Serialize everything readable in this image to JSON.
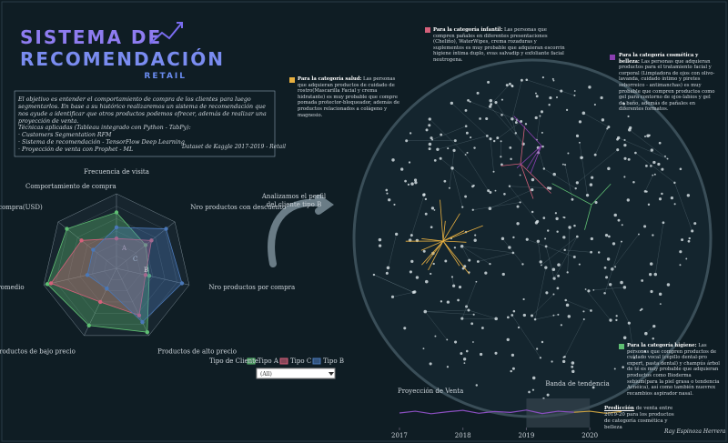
{
  "header": {
    "title_line1": "SISTEMA DE",
    "title_line2": "RECOMENDACIÓN",
    "subtitle": "RETAIL"
  },
  "intro": {
    "paragraph": "El objetivo es entender el comportamiento de compra de los clientes para luego segmentarlos. En base a su histórico realizaremos un sistema de recomendación que nos ayude a identificar que otros productos podemos ofrecer, además de realizar una proyección de venta.",
    "techniques_title": "Técnicas aplicadas (Tableau integrado con Python - TabPy):",
    "techniques": [
      "· Customers Segmentation RFM",
      "· Sistema de recomendación - TensorFlow Deep Learning",
      "· Proyección de venta con Prophet - ML"
    ],
    "source": "Dataset de Kaggle 2017-2019 - Retail"
  },
  "chart_data": [
    {
      "type": "radar",
      "title": "Comportamiento de compra",
      "categories": [
        "Frecuencia de visita",
        "Nro productos con descuento",
        "Nro productos por compra",
        "Productos de alto precio",
        "Productos de bajo precio",
        "Productos de precio promedio",
        "Total de compra(USD)"
      ],
      "rlim": [
        0,
        1
      ],
      "legend_title": "Tipo de Cliente",
      "series": [
        {
          "name": "Tipo A",
          "point_label": "A",
          "color": "#5fbf73",
          "values": [
            0.75,
            0.5,
            0.45,
            0.95,
            0.85,
            0.95,
            0.85
          ]
        },
        {
          "name": "Tipo C",
          "point_label": "C",
          "color": "#d4607a",
          "values": [
            0.4,
            0.6,
            0.4,
            0.7,
            0.5,
            0.9,
            0.6
          ]
        },
        {
          "name": "Tipo B",
          "point_label": "B",
          "color": "#4a78b8",
          "values": [
            0.55,
            0.85,
            0.9,
            0.8,
            0.3,
            0.4,
            0.4
          ]
        }
      ]
    },
    {
      "type": "line",
      "title": "Proyección de Venta",
      "band_label": "Banda de tendencia",
      "xlim": [
        2016.9,
        2020.6
      ],
      "ylim": [
        0,
        200
      ],
      "xticks": [
        2017,
        2018,
        2019,
        2020
      ],
      "x": [
        2017,
        2017.25,
        2017.5,
        2017.75,
        2018,
        2018.25,
        2018.5,
        2018.75,
        2019,
        2019.25,
        2019.5,
        2019.75,
        2020,
        2020.25,
        2020.5
      ],
      "series": [
        {
          "color": "#8a4fc0",
          "values": [
            100,
            112,
            95,
            108,
            118,
            98,
            110,
            104,
            120,
            96,
            112,
            105,
            null,
            null,
            null
          ]
        },
        {
          "color": "#c9a040",
          "values": [
            null,
            null,
            null,
            null,
            null,
            null,
            null,
            null,
            null,
            null,
            null,
            105,
            112,
            98,
            110
          ]
        }
      ]
    }
  ],
  "filter": {
    "value": "(All)"
  },
  "profile_note": {
    "text": "Analizamos el perfil del cliente tipo B"
  },
  "annotations": [
    {
      "title": "Para la categoría infantil:",
      "text": "Las personas que compren pañales en diferentes presentaciones (Cheliño), WaterWipes, crema rozaduras y suplementos es muy probable que adquieran escorrin higiene íntima duplo, evas salvadip y exfoliante facial neutrogena.",
      "color": "#d4607a"
    },
    {
      "title": "Para la categoría salud:",
      "text": "Las personas que adquieran productos de cuidado de rostro(Mascarilla Facial y crema hidratante) es muy probable que compre pomada protector-bloqueador, además de productos relacionados a colágeno y magnesio.",
      "color": "#e8b040"
    },
    {
      "title": "Para la categoría cosmética y belleza:",
      "text": "Las personas que adquieran productos para el tratamiento facial y corporal (Limpiadora de ojos con olivo-lavanda, cuidado íntimo y piretes seborreico - antimanchas) es muy probable que compren productos como gel para contorno de ojos-labios y gel de baño, además de pañales en diferentes formatos.",
      "color": "#8a3fb0"
    },
    {
      "title": "Para la categoría higiene:",
      "text": "Las personas que compren productos de cuidado vocal (cepillo dental-pro expert, pasta dental) y champús árbol de té es muy probable que adquieran productos como Bioderma sebium(para la piel grasa o tendencia Acnéica), así como también nuevrex recambios aspirador nasal.",
      "color": "#5fbf73"
    }
  ],
  "forecast_note": {
    "title": "Predicción",
    "text": "de venta entre 2019-20 para los productos de categoría cosmética y belleza"
  },
  "footer": {
    "author": "Ray Espinoza Herrera"
  }
}
